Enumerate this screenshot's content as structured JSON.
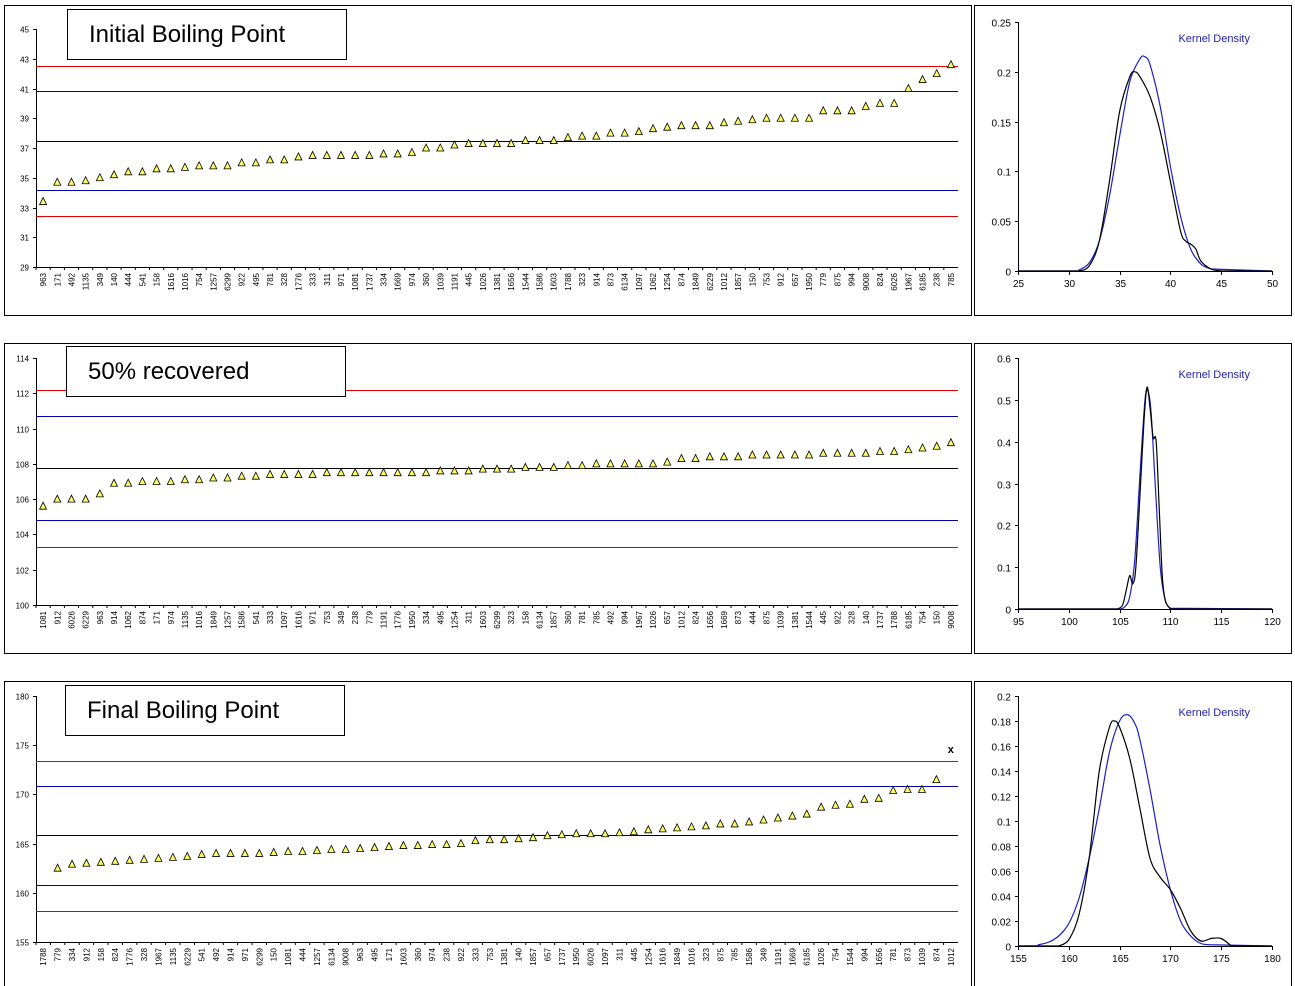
{
  "chart_data": [
    {
      "type": "scatter",
      "title": "Initial Boiling Point",
      "ylim": [
        29,
        45
      ],
      "yticks": [
        29,
        31,
        33,
        35,
        37,
        39,
        41,
        43,
        45
      ],
      "categories": [
        "963",
        "171",
        "492",
        "1135",
        "349",
        "140",
        "444",
        "541",
        "158",
        "1616",
        "1016",
        "754",
        "1257",
        "6299",
        "922",
        "495",
        "781",
        "328",
        "1776",
        "333",
        "311",
        "971",
        "1081",
        "1737",
        "334",
        "1669",
        "974",
        "360",
        "1039",
        "1191",
        "445",
        "1026",
        "1381",
        "1656",
        "1544",
        "1586",
        "1603",
        "1788",
        "323",
        "914",
        "873",
        "6134",
        "1097",
        "1062",
        "1254",
        "874",
        "1849",
        "6229",
        "1012",
        "1857",
        "150",
        "753",
        "912",
        "657",
        "1950",
        "779",
        "875",
        "994",
        "9008",
        "824",
        "6026",
        "1967",
        "6185",
        "238",
        "785"
      ],
      "values": [
        33.4,
        34.7,
        34.7,
        34.8,
        35.0,
        35.2,
        35.4,
        35.4,
        35.6,
        35.6,
        35.7,
        35.8,
        35.8,
        35.8,
        36.0,
        36.0,
        36.2,
        36.2,
        36.4,
        36.5,
        36.5,
        36.5,
        36.5,
        36.5,
        36.6,
        36.6,
        36.7,
        37.0,
        37.0,
        37.2,
        37.3,
        37.3,
        37.3,
        37.3,
        37.5,
        37.5,
        37.5,
        37.7,
        37.8,
        37.8,
        38.0,
        38.0,
        38.1,
        38.3,
        38.4,
        38.5,
        38.5,
        38.5,
        38.7,
        38.8,
        38.9,
        39.0,
        39.0,
        39.0,
        39.0,
        39.5,
        39.5,
        39.5,
        39.8,
        40.0,
        40.0,
        41.0,
        41.6,
        42.0,
        42.6
      ],
      "outliers": [],
      "hlines": [
        {
          "value": 42.5,
          "color": "#e00000"
        },
        {
          "value": 40.8,
          "color": "#0000b0"
        },
        {
          "value": 37.45,
          "color": "#000000"
        },
        {
          "value": 34.15,
          "color": "#0000b0"
        },
        {
          "value": 32.45,
          "color": "#e00000"
        }
      ],
      "density": {
        "legend": "Kernel Density",
        "xlim": [
          25,
          50
        ],
        "xticks": [
          25,
          30,
          35,
          40,
          45,
          50
        ],
        "ylim": [
          0,
          0.25
        ],
        "yticks": [
          "0",
          "0.05",
          "0.1",
          "0.15",
          "0.2",
          "0.25"
        ],
        "kernel_x": [
          31,
          32,
          33,
          34,
          35,
          36,
          36.5,
          37,
          38,
          39,
          40,
          41,
          41.5,
          42,
          42.5,
          43,
          44,
          45
        ],
        "kernel_y": [
          0,
          0.005,
          0.03,
          0.09,
          0.16,
          0.195,
          0.2,
          0.195,
          0.175,
          0.14,
          0.09,
          0.04,
          0.03,
          0.027,
          0.022,
          0.01,
          0.002,
          0
        ],
        "normal_x": [
          31,
          32,
          33,
          34,
          35,
          36,
          37,
          37.5,
          38,
          39,
          40,
          41,
          42,
          43,
          44
        ],
        "normal_y": [
          0.001,
          0.008,
          0.03,
          0.075,
          0.135,
          0.19,
          0.213,
          0.215,
          0.207,
          0.165,
          0.105,
          0.055,
          0.022,
          0.007,
          0.002
        ]
      }
    },
    {
      "type": "scatter",
      "title": "50% recovered",
      "ylim": [
        100,
        114
      ],
      "yticks": [
        100,
        102,
        104,
        106,
        108,
        110,
        112,
        114
      ],
      "categories": [
        "1081",
        "912",
        "6026",
        "6229",
        "963",
        "914",
        "1062",
        "874",
        "171",
        "974",
        "1135",
        "1016",
        "1849",
        "1257",
        "1586",
        "541",
        "333",
        "1097",
        "1616",
        "971",
        "753",
        "349",
        "238",
        "779",
        "1191",
        "1776",
        "1950",
        "334",
        "495",
        "1254",
        "311",
        "1603",
        "6299",
        "323",
        "158",
        "6134",
        "1857",
        "360",
        "781",
        "785",
        "492",
        "994",
        "1967",
        "1026",
        "657",
        "1012",
        "824",
        "1656",
        "1669",
        "873",
        "444",
        "875",
        "1039",
        "1381",
        "1544",
        "445",
        "922",
        "328",
        "140",
        "1737",
        "1788",
        "6185",
        "754",
        "150",
        "9008"
      ],
      "values": [
        105.6,
        106.0,
        106.0,
        106.0,
        106.3,
        106.9,
        106.9,
        107.0,
        107.0,
        107.0,
        107.1,
        107.1,
        107.2,
        107.2,
        107.3,
        107.3,
        107.4,
        107.4,
        107.4,
        107.4,
        107.5,
        107.5,
        107.5,
        107.5,
        107.5,
        107.5,
        107.5,
        107.5,
        107.6,
        107.6,
        107.6,
        107.7,
        107.7,
        107.7,
        107.8,
        107.8,
        107.8,
        107.9,
        107.9,
        108.0,
        108.0,
        108.0,
        108.0,
        108.0,
        108.1,
        108.3,
        108.3,
        108.4,
        108.4,
        108.4,
        108.5,
        108.5,
        108.5,
        108.5,
        108.5,
        108.6,
        108.6,
        108.6,
        108.6,
        108.7,
        108.7,
        108.8,
        108.9,
        109.0,
        109.2
      ],
      "outliers": [],
      "hlines": [
        {
          "value": 112.2,
          "color": "#e00000"
        },
        {
          "value": 110.7,
          "color": "#0000b0"
        },
        {
          "value": 107.75,
          "color": "#000000"
        },
        {
          "value": 104.8,
          "color": "#0000b0"
        },
        {
          "value": 103.3,
          "color": "#e00000"
        }
      ],
      "density": {
        "legend": "Kernel Density",
        "xlim": [
          95,
          120
        ],
        "xticks": [
          95,
          100,
          105,
          110,
          115,
          120
        ],
        "ylim": [
          0,
          0.6
        ],
        "yticks": [
          "0",
          "0.1",
          "0.2",
          "0.3",
          "0.4",
          "0.5",
          "0.6"
        ],
        "kernel_x": [
          104.8,
          105.3,
          105.7,
          106.0,
          106.3,
          106.6,
          107.0,
          107.4,
          107.7,
          108.0,
          108.3,
          108.6,
          108.9,
          109.2,
          109.5,
          110.0
        ],
        "kernel_y": [
          0,
          0.01,
          0.05,
          0.08,
          0.06,
          0.1,
          0.27,
          0.45,
          0.53,
          0.48,
          0.41,
          0.4,
          0.24,
          0.08,
          0.02,
          0
        ],
        "normal_x": [
          105,
          105.5,
          106,
          106.5,
          107,
          107.5,
          107.8,
          108.1,
          108.5,
          109,
          109.5,
          110
        ],
        "normal_y": [
          0,
          0.005,
          0.03,
          0.12,
          0.32,
          0.5,
          0.52,
          0.47,
          0.3,
          0.1,
          0.02,
          0.002
        ]
      }
    },
    {
      "type": "scatter",
      "title": "Final Boiling Point",
      "ylim": [
        155,
        180
      ],
      "yticks": [
        155,
        160,
        165,
        170,
        175,
        180
      ],
      "categories": [
        "1788",
        "779",
        "334",
        "912",
        "158",
        "824",
        "1776",
        "328",
        "1967",
        "1135",
        "6229",
        "541",
        "492",
        "914",
        "971",
        "6299",
        "150",
        "1081",
        "444",
        "1257",
        "6134",
        "9008",
        "963",
        "495",
        "171",
        "1603",
        "360",
        "974",
        "238",
        "922",
        "333",
        "753",
        "1381",
        "140",
        "1857",
        "657",
        "1737",
        "1950",
        "6026",
        "1097",
        "311",
        "445",
        "1254",
        "1616",
        "1849",
        "1016",
        "323",
        "875",
        "785",
        "1586",
        "349",
        "1191",
        "1669",
        "6185",
        "1026",
        "754",
        "1544",
        "994",
        "1656",
        "781",
        "873",
        "1039",
        "874",
        "1012"
      ],
      "values": [
        null,
        162.5,
        162.9,
        163.0,
        163.1,
        163.2,
        163.3,
        163.4,
        163.5,
        163.6,
        163.7,
        163.9,
        164.0,
        164.0,
        164.0,
        164.0,
        164.1,
        164.2,
        164.2,
        164.3,
        164.4,
        164.4,
        164.5,
        164.6,
        164.7,
        164.8,
        164.8,
        164.9,
        164.9,
        165.0,
        165.3,
        165.4,
        165.4,
        165.5,
        165.6,
        165.8,
        165.9,
        166.0,
        166.0,
        166.0,
        166.1,
        166.2,
        166.4,
        166.5,
        166.6,
        166.7,
        166.8,
        167.0,
        167.0,
        167.2,
        167.4,
        167.6,
        167.8,
        168.0,
        168.7,
        168.9,
        169.0,
        169.5,
        169.6,
        170.4,
        170.5,
        170.5,
        171.5,
        null
      ],
      "outliers": [
        {
          "index": 63,
          "value": 174.5,
          "marker": "x"
        }
      ],
      "hlines": [
        {
          "value": 173.4,
          "color": "#e00000"
        },
        {
          "value": 170.9,
          "color": "#0000b0"
        },
        {
          "value": 165.9,
          "color": "#000000"
        },
        {
          "value": 160.8,
          "color": "#0000b0"
        },
        {
          "value": 158.2,
          "color": "#e00000"
        }
      ],
      "density": {
        "legend": "Kernel Density",
        "xlim": [
          155,
          180
        ],
        "xticks": [
          155,
          160,
          165,
          170,
          175,
          180
        ],
        "ylim": [
          0,
          0.2
        ],
        "yticks": [
          "0",
          "0.02",
          "0.04",
          "0.06",
          "0.08",
          "0.1",
          "0.12",
          "0.14",
          "0.16",
          "0.18",
          "0.2"
        ],
        "kernel_x": [
          159,
          160,
          161,
          162,
          163,
          164,
          164.5,
          165,
          166,
          167,
          168,
          169,
          170,
          171,
          172,
          173,
          174,
          175,
          176
        ],
        "kernel_y": [
          0,
          0.005,
          0.025,
          0.07,
          0.14,
          0.175,
          0.18,
          0.175,
          0.15,
          0.11,
          0.07,
          0.055,
          0.045,
          0.03,
          0.012,
          0.004,
          0.006,
          0.006,
          0
        ],
        "normal_x": [
          157,
          158,
          159,
          160,
          161,
          162,
          163,
          164,
          165,
          165.8,
          166.5,
          167,
          168,
          169,
          170,
          171,
          172,
          173,
          174
        ],
        "normal_y": [
          0.001,
          0.003,
          0.008,
          0.018,
          0.038,
          0.07,
          0.11,
          0.155,
          0.18,
          0.185,
          0.178,
          0.165,
          0.125,
          0.08,
          0.045,
          0.02,
          0.008,
          0.002,
          0.001
        ]
      }
    }
  ]
}
